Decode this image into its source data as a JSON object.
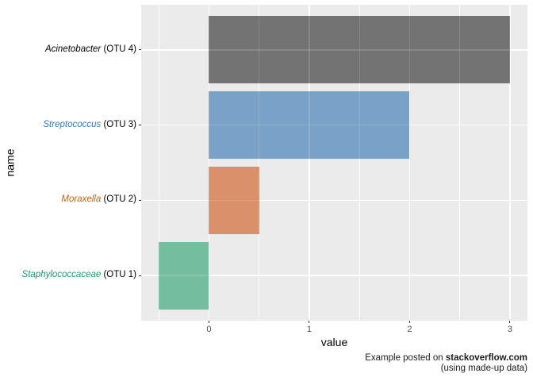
{
  "chart_data": {
    "type": "bar",
    "orientation": "horizontal",
    "title": "",
    "xlabel": "value",
    "ylabel": "name",
    "xlim": [
      -0.675,
      3.175
    ],
    "x_major_ticks": [
      0,
      1,
      2,
      3
    ],
    "x_minor_ticks": [
      -0.5,
      0.5,
      1.5,
      2.5
    ],
    "bar_origin": 0,
    "grid": true,
    "legend": false,
    "bars": [
      {
        "label_italic": "Acinetobacter",
        "label_rest": " (OTU 4)",
        "value": 3,
        "bar_color": "#737373",
        "label_color": "#000000"
      },
      {
        "label_italic": "Streptococcus",
        "label_rest": " (OTU 3)",
        "value": 2,
        "bar_color": "#7AA2C8",
        "label_color": "#3C78B4"
      },
      {
        "label_italic": "Moraxella",
        "label_rest": " (OTU 2)",
        "value": 0.5,
        "bar_color": "#DA906B",
        "label_color": "#D15E0E"
      },
      {
        "label_italic": "Staphylococcaceae",
        "label_rest": " (OTU 1)",
        "value": -0.5,
        "bar_color": "#75BD9F",
        "label_color": "#199C73"
      }
    ]
  },
  "caption": {
    "line1_normal": "Example posted on ",
    "line1_bold": "stackoverflow.com",
    "line2": "(using made-up data)"
  },
  "theme": {
    "figure_bg": "#FFFFFF",
    "panel_bg": "#EBEBEB",
    "grid_color": "#FFFFFF",
    "grid_overlay_color": "rgba(255,255,255,0.15)",
    "tick_color": "#333333",
    "tick_label_color": "#4D4D4D",
    "axis_title_color": "#000000",
    "caption_color": "#1A1A1A"
  }
}
